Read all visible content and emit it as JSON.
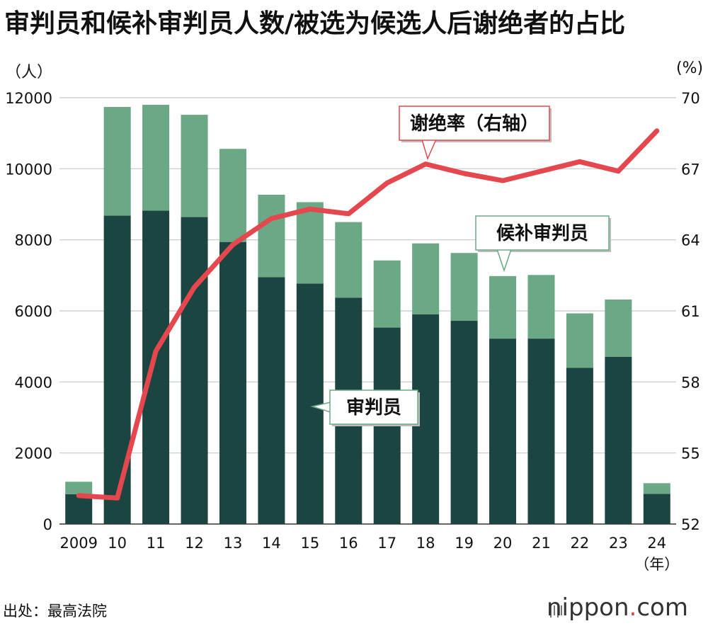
{
  "title": "审判员和候补审判员人数/被选为候选人后谢绝者的占比",
  "units": {
    "left": "（人）",
    "right": "(%)"
  },
  "source": "出处：最高法院",
  "brand": {
    "name": "nippon",
    "dot": ".",
    "suffix": "com"
  },
  "year_suffix": "（年）",
  "colors": {
    "judges": "#1c4440",
    "alternates": "#6aa886",
    "rate": "#e5474f"
  },
  "chart_data": {
    "type": "bar",
    "stacked": true,
    "categories": [
      "2009",
      "10",
      "11",
      "12",
      "13",
      "14",
      "15",
      "16",
      "17",
      "18",
      "19",
      "20",
      "21",
      "22",
      "23",
      "24"
    ],
    "series": [
      {
        "name": "审判员",
        "values": [
          840,
          8680,
          8820,
          8640,
          7940,
          6950,
          6770,
          6370,
          5530,
          5900,
          5720,
          5220,
          5220,
          4400,
          4710,
          850
        ]
      },
      {
        "name": "候补审判员",
        "values": [
          350,
          3060,
          2980,
          2880,
          2620,
          2320,
          2290,
          2130,
          1890,
          2000,
          1910,
          1760,
          1790,
          1530,
          1610,
          300
        ]
      },
      {
        "name": "谢绝率（右轴）",
        "type": "line",
        "axis": "right",
        "values": [
          53.2,
          53.1,
          59.3,
          62.0,
          63.8,
          64.9,
          65.3,
          65.1,
          66.4,
          67.2,
          66.8,
          66.5,
          66.9,
          67.3,
          66.9,
          68.6
        ]
      }
    ],
    "y_left": {
      "min": 0,
      "max": 12000,
      "ticks": [
        "0",
        "2000",
        "4000",
        "6000",
        "8000",
        "10000",
        "12000"
      ]
    },
    "y_right": {
      "min": 52,
      "max": 70,
      "ticks": [
        "52",
        "55",
        "58",
        "61",
        "64",
        "67",
        "70"
      ]
    },
    "grid": true
  }
}
